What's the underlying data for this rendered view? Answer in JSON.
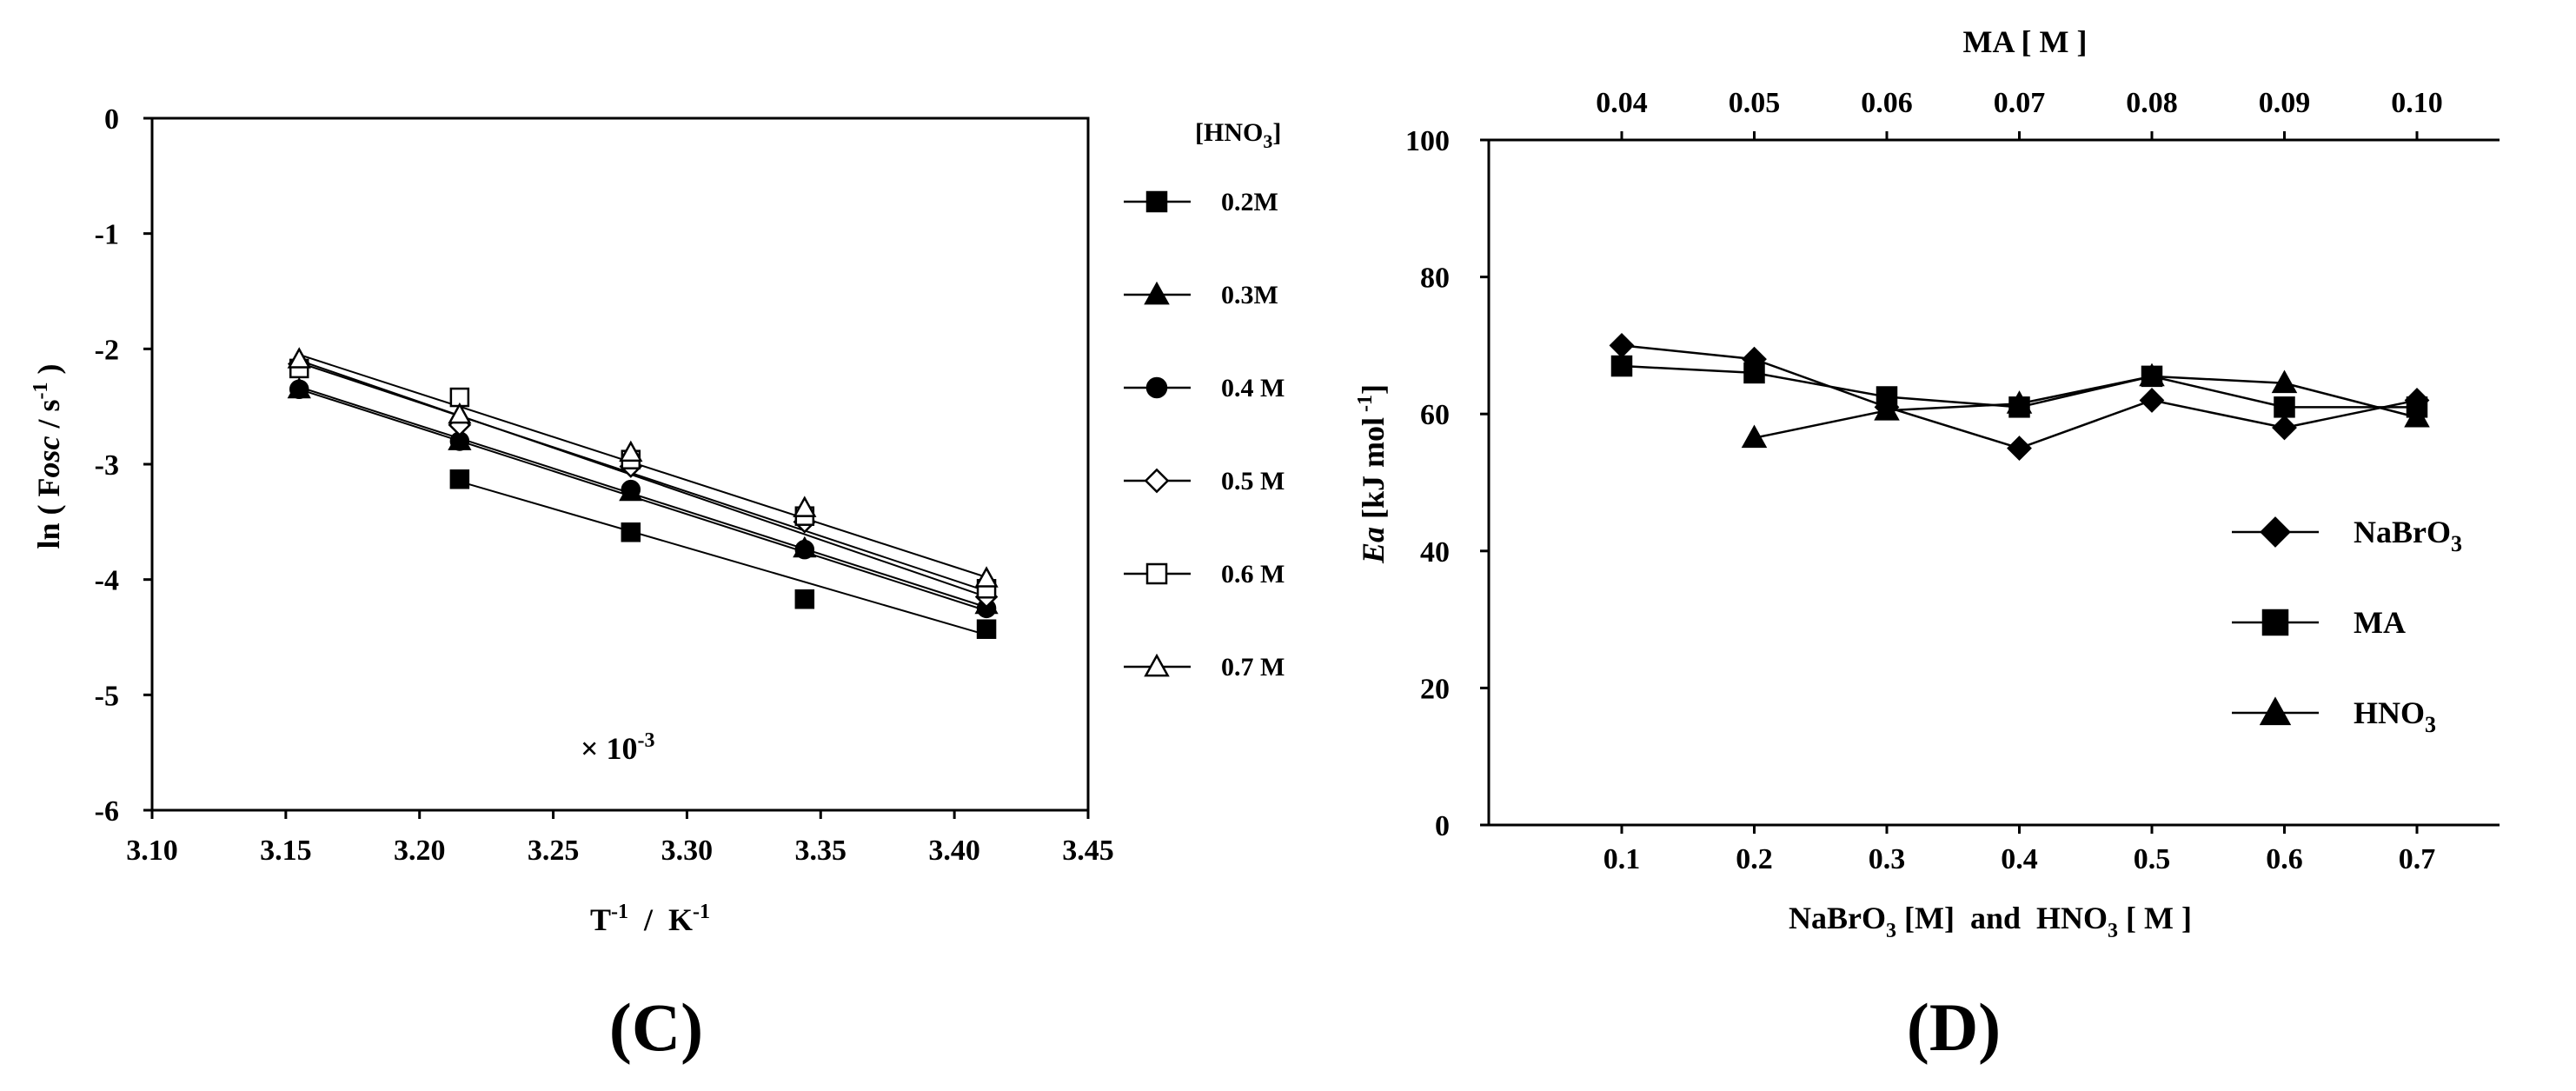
{
  "chart_data": [
    {
      "type": "scatter",
      "panel_label": "(C)",
      "xlabel": {
        "main": "T",
        "sup1": "-1",
        "mid": "  /  K",
        "sup2": "-1"
      },
      "ylabel": {
        "pre": "ln ( F",
        "italic": "osc",
        "mid": " / s",
        "sup": "-1",
        "post": ")"
      },
      "multiplier": {
        "main": "× 10",
        "sup": "-3"
      },
      "xlim": [
        3.1,
        3.45
      ],
      "ylim": [
        -6,
        0
      ],
      "xticks": [
        "3.10",
        "3.15",
        "3.20",
        "3.25",
        "3.30",
        "3.35",
        "3.40",
        "3.45"
      ],
      "yticks": [
        "0",
        "-1",
        "-2",
        "-3",
        "-4",
        "-5",
        "-6"
      ],
      "legend_title": {
        "pre": "[HNO",
        "sub": "3",
        "post": "]"
      },
      "legend_position": "right",
      "series": [
        {
          "name": "0.2M",
          "marker": "square-filled",
          "x": [
            3.215,
            3.279,
            3.344,
            3.412
          ],
          "y": [
            -3.13,
            -3.59,
            -4.17,
            -4.43
          ],
          "fit": [
            [
              3.215,
              -3.15
            ],
            [
              3.412,
              -4.48
            ]
          ]
        },
        {
          "name": "0.3M",
          "marker": "triangle-filled",
          "x": [
            3.155,
            3.215,
            3.279,
            3.344,
            3.412
          ],
          "y": [
            -2.35,
            -2.8,
            -3.24,
            -3.73,
            -4.22
          ],
          "fit": [
            [
              3.155,
              -2.33
            ],
            [
              3.412,
              -4.24
            ]
          ]
        },
        {
          "name": "0.4 M",
          "marker": "circle-filled",
          "x": [
            3.155,
            3.215,
            3.279,
            3.344,
            3.412
          ],
          "y": [
            -2.35,
            -2.8,
            -3.22,
            -3.74,
            -4.25
          ],
          "fit": [
            [
              3.155,
              -2.35
            ],
            [
              3.412,
              -4.27
            ]
          ]
        },
        {
          "name": "0.5 M",
          "marker": "diamond-open",
          "x": [
            3.155,
            3.215,
            3.279,
            3.344,
            3.412
          ],
          "y": [
            -2.13,
            -2.66,
            -3.02,
            -3.5,
            -4.15
          ],
          "fit": [
            [
              3.155,
              -2.1
            ],
            [
              3.412,
              -4.15
            ]
          ]
        },
        {
          "name": "0.6 M",
          "marker": "square-open",
          "x": [
            3.155,
            3.215,
            3.279,
            3.344,
            3.412
          ],
          "y": [
            -2.17,
            -2.42,
            -2.96,
            -3.45,
            -4.08
          ],
          "fit": [
            [
              3.155,
              -2.12
            ],
            [
              3.412,
              -4.1
            ]
          ]
        },
        {
          "name": "0.7 M",
          "marker": "triangle-open",
          "x": [
            3.155,
            3.215,
            3.279,
            3.344,
            3.412
          ],
          "y": [
            -2.09,
            -2.57,
            -2.9,
            -3.38,
            -3.99
          ],
          "fit": [
            [
              3.155,
              -2.05
            ],
            [
              3.412,
              -3.98
            ]
          ]
        }
      ]
    },
    {
      "type": "line",
      "panel_label": "(D)",
      "xlabel": {
        "p1": "NaBrO",
        "s1": "3",
        "p2": " [M]  and  HNO",
        "s2": "3",
        "p3": " [ M ]"
      },
      "x2label": "MA [ M ]",
      "ylabel": {
        "italic": "Ea",
        "mid": " [kJ mol",
        "sup": " -1",
        "post": "]"
      },
      "categories": [
        "0.1",
        "0.2",
        "0.3",
        "0.4",
        "0.5",
        "0.6",
        "0.7"
      ],
      "top_categories": [
        "0.04",
        "0.05",
        "0.06",
        "0.07",
        "0.08",
        "0.09",
        "0.10"
      ],
      "ylim": [
        0,
        100
      ],
      "yticks": [
        "0",
        "20",
        "40",
        "60",
        "80",
        "100"
      ],
      "legend_position": "lower-right",
      "series": [
        {
          "name": "NaBrO",
          "name_sub": "3",
          "marker": "diamond-filled",
          "values": [
            70,
            68,
            61,
            55,
            62,
            58,
            62
          ]
        },
        {
          "name": "MA",
          "name_sub": "",
          "marker": "square-filled",
          "values": [
            67,
            66,
            62.5,
            61,
            65.5,
            61,
            61
          ]
        },
        {
          "name": "HNO",
          "name_sub": "3",
          "marker": "triangle-filled",
          "values": [
            null,
            56.5,
            60.5,
            61.5,
            65.5,
            64.5,
            59.5
          ]
        }
      ]
    }
  ]
}
